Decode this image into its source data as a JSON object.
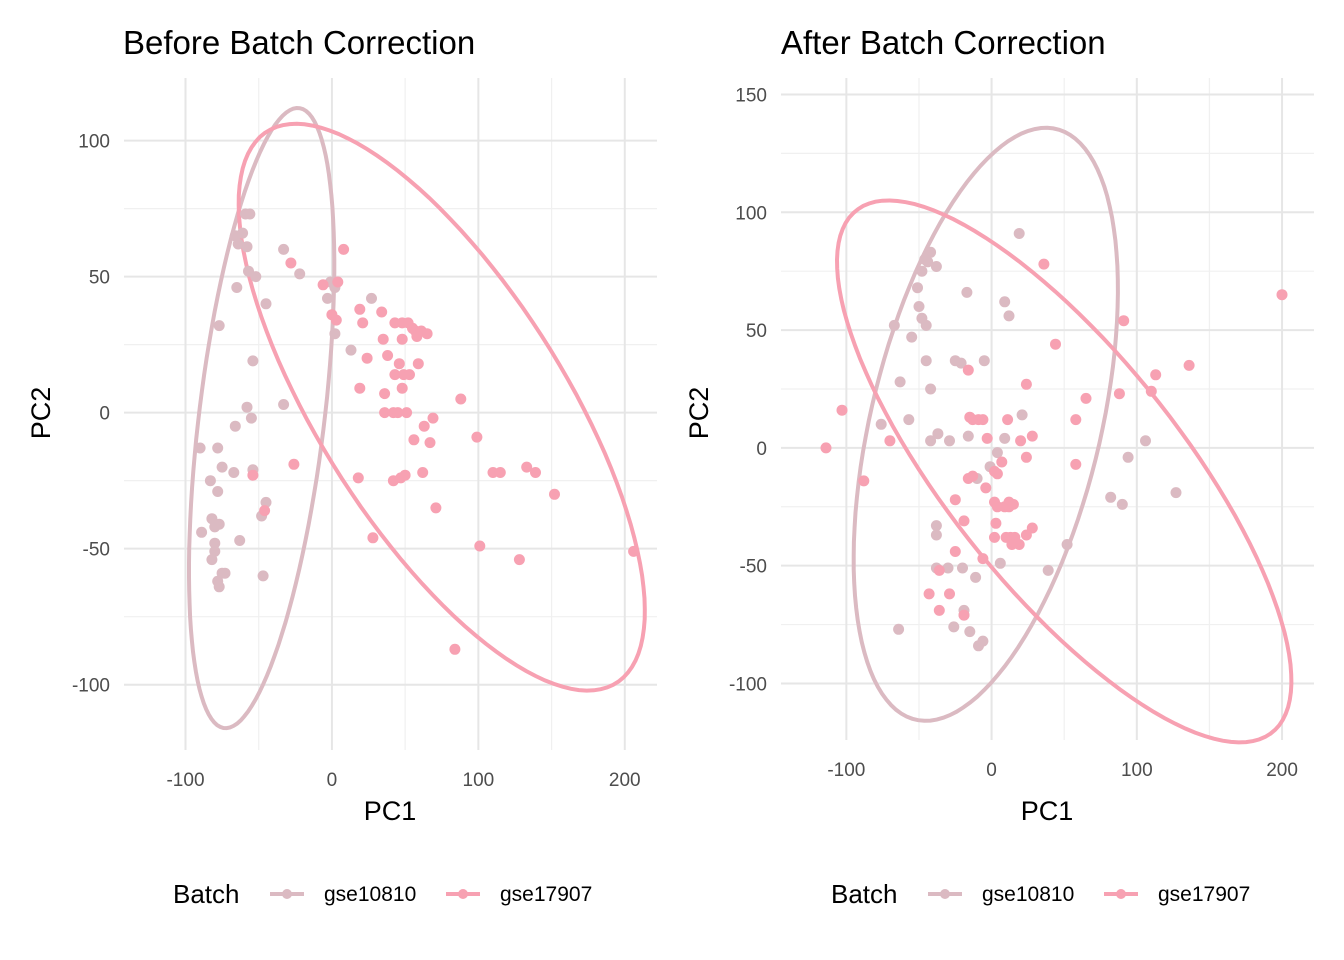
{
  "chart_data": [
    {
      "type": "scatter",
      "title": "Before Batch Correction",
      "xlabel": "PC1",
      "ylabel": "PC2",
      "xlim": [
        -142,
        222
      ],
      "ylim": [
        -124,
        123
      ],
      "xticks": [
        -100,
        0,
        100,
        200
      ],
      "yticks": [
        -100,
        -50,
        0,
        50,
        100
      ],
      "grid": true,
      "legend": {
        "title": "Batch",
        "position": "bottom"
      },
      "ellipses": [
        {
          "series": "gse10810",
          "center": [
            -48,
            -2
          ],
          "rx": 117,
          "ry": 42,
          "angle_deg": 76
        },
        {
          "series": "gse17907",
          "center": [
            75,
            2
          ],
          "rx": 162,
          "ry": 62,
          "angle_deg": -34
        }
      ],
      "series": [
        {
          "name": "gse10810",
          "color": "#dbbac2",
          "points": [
            [
              -59,
              73
            ],
            [
              -56,
              73
            ],
            [
              -66,
              65
            ],
            [
              -61,
              66
            ],
            [
              -64,
              62
            ],
            [
              -58,
              61
            ],
            [
              -33,
              60
            ],
            [
              -22,
              51
            ],
            [
              -57,
              52
            ],
            [
              -52,
              50
            ],
            [
              -65,
              46
            ],
            [
              -45,
              40
            ],
            [
              -77,
              32
            ],
            [
              -54,
              19
            ],
            [
              -58,
              2
            ],
            [
              -33,
              3
            ],
            [
              -55,
              -2
            ],
            [
              -90,
              -13
            ],
            [
              -78,
              -13
            ],
            [
              -66,
              -5
            ],
            [
              -75,
              -20
            ],
            [
              -67,
              -22
            ],
            [
              -54,
              -21
            ],
            [
              -83,
              -25
            ],
            [
              -78,
              -29
            ],
            [
              -45,
              -33
            ],
            [
              -48,
              -38
            ],
            [
              -82,
              -39
            ],
            [
              -80,
              -42
            ],
            [
              -77,
              -41
            ],
            [
              -89,
              -44
            ],
            [
              -80,
              -48
            ],
            [
              -80,
              -51
            ],
            [
              -63,
              -47
            ],
            [
              -82,
              -54
            ],
            [
              -75,
              -59
            ],
            [
              -73,
              -59
            ],
            [
              -78,
              -62
            ],
            [
              -47,
              -60
            ],
            [
              -77,
              -64
            ],
            [
              -3,
              42
            ],
            [
              2,
              46
            ],
            [
              -1,
              48
            ],
            [
              27,
              42
            ],
            [
              2,
              29
            ],
            [
              13,
              23
            ]
          ]
        },
        {
          "name": "gse17907",
          "color": "#f7a1b2",
          "points": [
            [
              -28,
              55
            ],
            [
              8,
              60
            ],
            [
              4,
              48
            ],
            [
              -6,
              47
            ],
            [
              0,
              36
            ],
            [
              19,
              38
            ],
            [
              34,
              37
            ],
            [
              3,
              34
            ],
            [
              21,
              33
            ],
            [
              43,
              33
            ],
            [
              48,
              33
            ],
            [
              52,
              33
            ],
            [
              55,
              31
            ],
            [
              57,
              30
            ],
            [
              61,
              30
            ],
            [
              65,
              29
            ],
            [
              35,
              27
            ],
            [
              48,
              27
            ],
            [
              58,
              28
            ],
            [
              24,
              20
            ],
            [
              38,
              21
            ],
            [
              46,
              18
            ],
            [
              59,
              18
            ],
            [
              43,
              14
            ],
            [
              49,
              14
            ],
            [
              53,
              14
            ],
            [
              48,
              9
            ],
            [
              19,
              9
            ],
            [
              36,
              7
            ],
            [
              88,
              5
            ],
            [
              36,
              0
            ],
            [
              42,
              0
            ],
            [
              45,
              0
            ],
            [
              51,
              0
            ],
            [
              69,
              -2
            ],
            [
              63,
              -5
            ],
            [
              56,
              -10
            ],
            [
              67,
              -11
            ],
            [
              99,
              -9
            ],
            [
              -26,
              -19
            ],
            [
              -54,
              -23
            ],
            [
              -46,
              -36
            ],
            [
              18,
              -24
            ],
            [
              42,
              -25
            ],
            [
              47,
              -24
            ],
            [
              50,
              -23
            ],
            [
              62,
              -22
            ],
            [
              110,
              -22
            ],
            [
              115,
              -22
            ],
            [
              133,
              -20
            ],
            [
              139,
              -22
            ],
            [
              152,
              -30
            ],
            [
              71,
              -35
            ],
            [
              28,
              -46
            ],
            [
              101,
              -49
            ],
            [
              128,
              -54
            ],
            [
              84,
              -87
            ],
            [
              206,
              -51
            ]
          ]
        }
      ]
    },
    {
      "type": "scatter",
      "title": "After Batch Correction",
      "xlabel": "PC1",
      "ylabel": "PC2",
      "xlim": [
        -145,
        222
      ],
      "ylim": [
        -124,
        157
      ],
      "xticks": [
        -100,
        0,
        100,
        200
      ],
      "yticks": [
        -100,
        -50,
        0,
        50,
        100,
        150
      ],
      "grid": true,
      "legend": {
        "title": "Batch",
        "position": "bottom"
      },
      "ellipses": [
        {
          "series": "gse10810",
          "center": [
            -4,
            10
          ],
          "rx": 136,
          "ry": 75,
          "angle_deg": 63
        },
        {
          "series": "gse17907",
          "center": [
            50,
            -10
          ],
          "rx": 184,
          "ry": 62,
          "angle_deg": -34
        }
      ],
      "series": [
        {
          "name": "gse10810",
          "color": "#dbbac2",
          "points": [
            [
              -42,
              83
            ],
            [
              -44,
              79
            ],
            [
              -46,
              80
            ],
            [
              -48,
              75
            ],
            [
              -38,
              77
            ],
            [
              19,
              91
            ],
            [
              -51,
              68
            ],
            [
              -17,
              66
            ],
            [
              -50,
              60
            ],
            [
              -48,
              55
            ],
            [
              -45,
              52
            ],
            [
              -67,
              52
            ],
            [
              -55,
              47
            ],
            [
              9,
              62
            ],
            [
              12,
              56
            ],
            [
              -45,
              37
            ],
            [
              -25,
              37
            ],
            [
              -21,
              36
            ],
            [
              -5,
              37
            ],
            [
              -42,
              25
            ],
            [
              -63,
              28
            ],
            [
              -76,
              10
            ],
            [
              -57,
              12
            ],
            [
              -37,
              6
            ],
            [
              -16,
              5
            ],
            [
              -29,
              3
            ],
            [
              -42,
              3
            ],
            [
              -10,
              -13
            ],
            [
              -1,
              -8
            ],
            [
              21,
              14
            ],
            [
              4,
              -2
            ],
            [
              9,
              4
            ],
            [
              82,
              -21
            ],
            [
              90,
              -24
            ],
            [
              106,
              3
            ],
            [
              94,
              -4
            ],
            [
              127,
              -19
            ],
            [
              52,
              -41
            ],
            [
              39,
              -52
            ],
            [
              -30,
              -51
            ],
            [
              -20,
              -51
            ],
            [
              -11,
              -55
            ],
            [
              -38,
              -51
            ],
            [
              6,
              -49
            ],
            [
              -38,
              -37
            ],
            [
              -38,
              -33
            ],
            [
              -19,
              -69
            ],
            [
              -19,
              -71
            ],
            [
              -26,
              -76
            ],
            [
              -15,
              -78
            ],
            [
              -6,
              -82
            ],
            [
              -9,
              -84
            ],
            [
              -64,
              -77
            ]
          ]
        },
        {
          "name": "gse17907",
          "color": "#f7a1b2",
          "points": [
            [
              -114,
              0
            ],
            [
              -103,
              16
            ],
            [
              -70,
              3
            ],
            [
              -88,
              -14
            ],
            [
              200,
              65
            ],
            [
              36,
              78
            ],
            [
              91,
              54
            ],
            [
              44,
              44
            ],
            [
              113,
              31
            ],
            [
              136,
              35
            ],
            [
              110,
              24
            ],
            [
              88,
              23
            ],
            [
              65,
              21
            ],
            [
              -16,
              33
            ],
            [
              24,
              27
            ],
            [
              58,
              12
            ],
            [
              -13,
              12
            ],
            [
              -15,
              13
            ],
            [
              -9,
              12
            ],
            [
              -6,
              12
            ],
            [
              11,
              12
            ],
            [
              -3,
              4
            ],
            [
              20,
              3
            ],
            [
              28,
              5
            ],
            [
              7,
              -6
            ],
            [
              24,
              -4
            ],
            [
              2,
              -10
            ],
            [
              4,
              -11
            ],
            [
              58,
              -7
            ],
            [
              -13,
              -12
            ],
            [
              -16,
              -13
            ],
            [
              -4,
              -17
            ],
            [
              2,
              -23
            ],
            [
              4,
              -25
            ],
            [
              9,
              -25
            ],
            [
              12,
              -23
            ],
            [
              12,
              -25
            ],
            [
              15,
              -24
            ],
            [
              -25,
              -22
            ],
            [
              -19,
              -31
            ],
            [
              3,
              -32
            ],
            [
              2,
              -38
            ],
            [
              10,
              -38
            ],
            [
              13,
              -38
            ],
            [
              16,
              -38
            ],
            [
              24,
              -37
            ],
            [
              28,
              -34
            ],
            [
              14,
              -41
            ],
            [
              19,
              -41
            ],
            [
              -25,
              -44
            ],
            [
              -6,
              -47
            ],
            [
              -36,
              -52
            ],
            [
              -43,
              -62
            ],
            [
              -29,
              -62
            ],
            [
              -36,
              -69
            ],
            [
              -19,
              -71
            ]
          ]
        }
      ]
    }
  ]
}
